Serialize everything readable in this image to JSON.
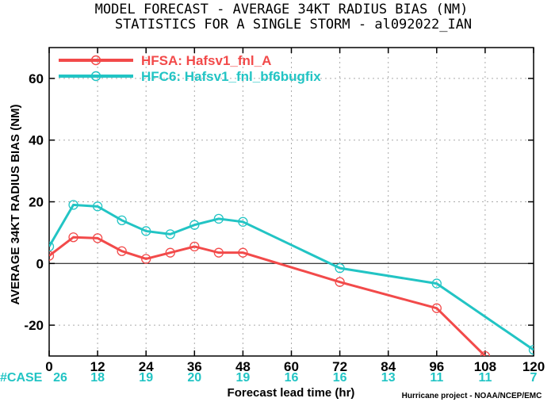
{
  "title_line1": "MODEL FORECAST - AVERAGE 34KT RADIUS BIAS (NM)",
  "title_line2": "STATISTICS FOR A SINGLE STORM - al092022_IAN",
  "credit": "Hurricane project - NOAA/NCEP/EMC",
  "case_label": "#CASE",
  "colors": {
    "hfsa": "#f24a4a",
    "hfc6": "#22c4c4",
    "axis": "#000000",
    "grid": "#aaaaaa"
  },
  "chart_data": {
    "type": "line",
    "xlabel": "Forecast lead time (hr)",
    "ylabel": "AVERAGE 34KT RADIUS BIAS (NM)",
    "xlim": [
      0,
      120
    ],
    "ylim": [
      -30,
      70
    ],
    "xticks": [
      0,
      12,
      24,
      36,
      48,
      60,
      72,
      84,
      96,
      108,
      120
    ],
    "yticks": [
      -20,
      0,
      20,
      40,
      60
    ],
    "grid": true,
    "legend_position": "top-left",
    "cases": {
      "x": [
        0,
        12,
        24,
        36,
        48,
        60,
        72,
        84,
        96,
        108,
        120
      ],
      "values": [
        "26",
        "18",
        "19",
        "20",
        "19",
        "16",
        "16",
        "13",
        "11",
        "11",
        "7"
      ]
    },
    "series": [
      {
        "name": "HFSA: Hafsv1_fnl_A",
        "color": "#f24a4a",
        "x": [
          0,
          6,
          12,
          18,
          24,
          30,
          36,
          42,
          48,
          72,
          96,
          108
        ],
        "y": [
          2.5,
          8.5,
          8.2,
          4,
          1.5,
          3.5,
          5.5,
          3.5,
          3.5,
          -6,
          -14.5,
          -30
        ]
      },
      {
        "name": "HFC6: Hafsv1_fnl_bf6bugfix",
        "color": "#22c4c4",
        "x": [
          0,
          6,
          12,
          18,
          24,
          30,
          36,
          42,
          48,
          72,
          96,
          120
        ],
        "y": [
          5.5,
          19,
          18.5,
          14,
          10.5,
          9.5,
          12.5,
          14.5,
          13.5,
          -1.5,
          -6.5,
          -28
        ]
      }
    ]
  }
}
